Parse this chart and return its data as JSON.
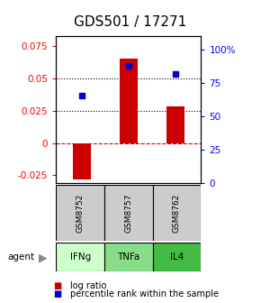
{
  "title": "GDS501 / 17271",
  "samples": [
    "GSM8752",
    "GSM8757",
    "GSM8762"
  ],
  "agents": [
    "IFNg",
    "TNFa",
    "IL4"
  ],
  "log_ratios": [
    -0.028,
    0.065,
    0.028
  ],
  "percentile_ranks": [
    0.66,
    0.88,
    0.82
  ],
  "ylim_left": [
    -0.03125,
    0.0825
  ],
  "ylim_right": [
    0.0,
    1.1
  ],
  "yticks_left": [
    -0.025,
    0.0,
    0.025,
    0.05,
    0.075
  ],
  "ytick_labels_left": [
    "-0.025",
    "0",
    "0.025",
    "0.05",
    "0.075"
  ],
  "yticks_right": [
    0.0,
    0.25,
    0.5,
    0.75,
    1.0
  ],
  "ytick_labels_right": [
    "0",
    "25",
    "50",
    "75",
    "100%"
  ],
  "bar_color": "#cc0000",
  "dot_color": "#0000cc",
  "agent_colors": [
    "#ccffcc",
    "#88dd88",
    "#44bb44"
  ],
  "sample_bg_color": "#cccccc",
  "zero_line_color": "#cc0000",
  "title_fontsize": 11,
  "tick_fontsize": 7.5,
  "legend_fontsize": 7
}
